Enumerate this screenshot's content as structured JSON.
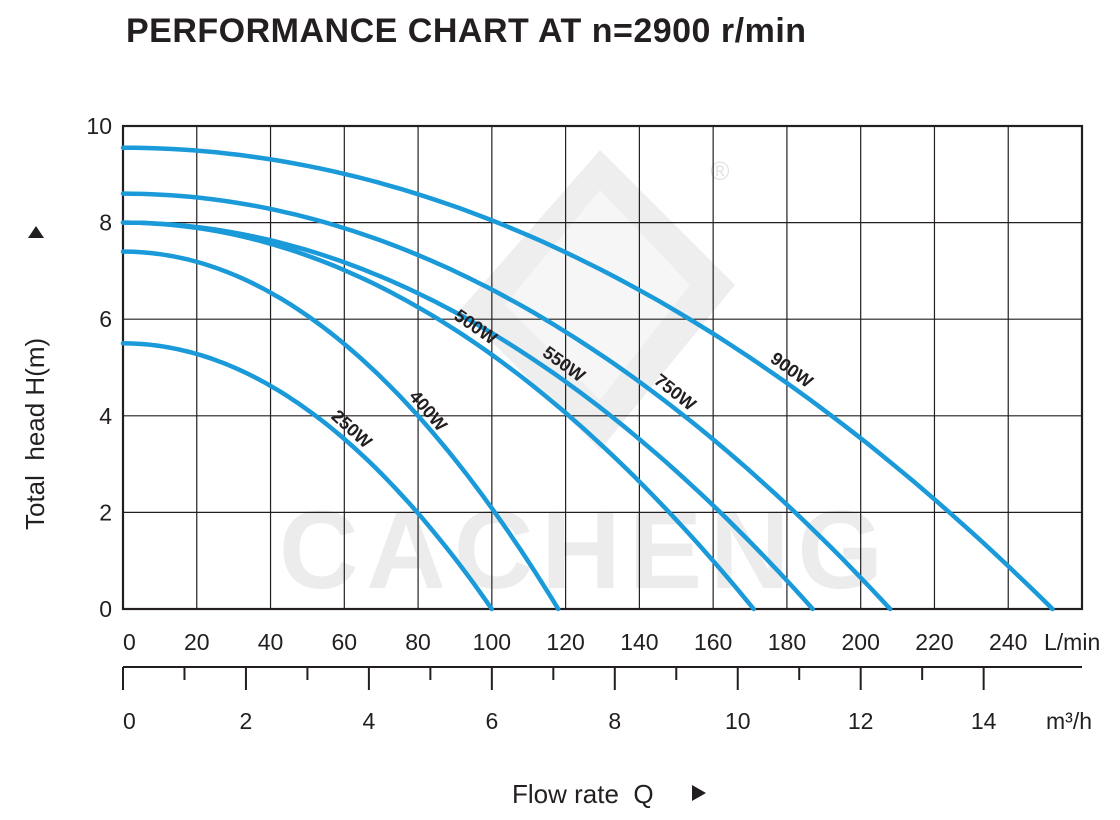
{
  "chart_data": {
    "type": "line",
    "title": "PERFORMANCE CHART AT n=2900 r/min",
    "ylabel": "Total  head H(m)",
    "xlabel": "Flow rate  Q",
    "x_unit_primary": "L/min",
    "x_unit_secondary": "m³/h",
    "watermark": "CACHENG",
    "registered_mark": "®",
    "xlim": [
      0,
      260
    ],
    "ylim": [
      0,
      10
    ],
    "x_ticks": [
      "0",
      "20",
      "40",
      "60",
      "80",
      "100",
      "120",
      "140",
      "160",
      "180",
      "200",
      "220",
      "240"
    ],
    "x_ticks_values": [
      0,
      20,
      40,
      60,
      80,
      100,
      120,
      140,
      160,
      180,
      200,
      220,
      240
    ],
    "m3h_ticks": [
      "0",
      "2",
      "4",
      "6",
      "8",
      "10",
      "12",
      "14"
    ],
    "m3h_ticks_values": [
      0,
      2,
      4,
      6,
      8,
      10,
      12,
      14
    ],
    "m3h_minor_values": [
      1,
      3,
      5,
      7,
      9,
      11,
      13
    ],
    "y_ticks": [
      "0",
      "2",
      "4",
      "6",
      "8",
      "10"
    ],
    "y_ticks_values": [
      0,
      2,
      4,
      6,
      8,
      10
    ],
    "grid": true,
    "curve_color": "#1a9ad9",
    "series": [
      {
        "name": "250W",
        "h0": 5.5,
        "qmax": 100
      },
      {
        "name": "400W",
        "h0": 7.4,
        "qmax": 118
      },
      {
        "name": "500W",
        "h0": 8.0,
        "qmax": 171
      },
      {
        "name": "550W",
        "h0": 8.0,
        "qmax": 187
      },
      {
        "name": "750W",
        "h0": 8.6,
        "qmax": 208
      },
      {
        "name": "900W",
        "h0": 9.55,
        "qmax": 252
      }
    ]
  }
}
